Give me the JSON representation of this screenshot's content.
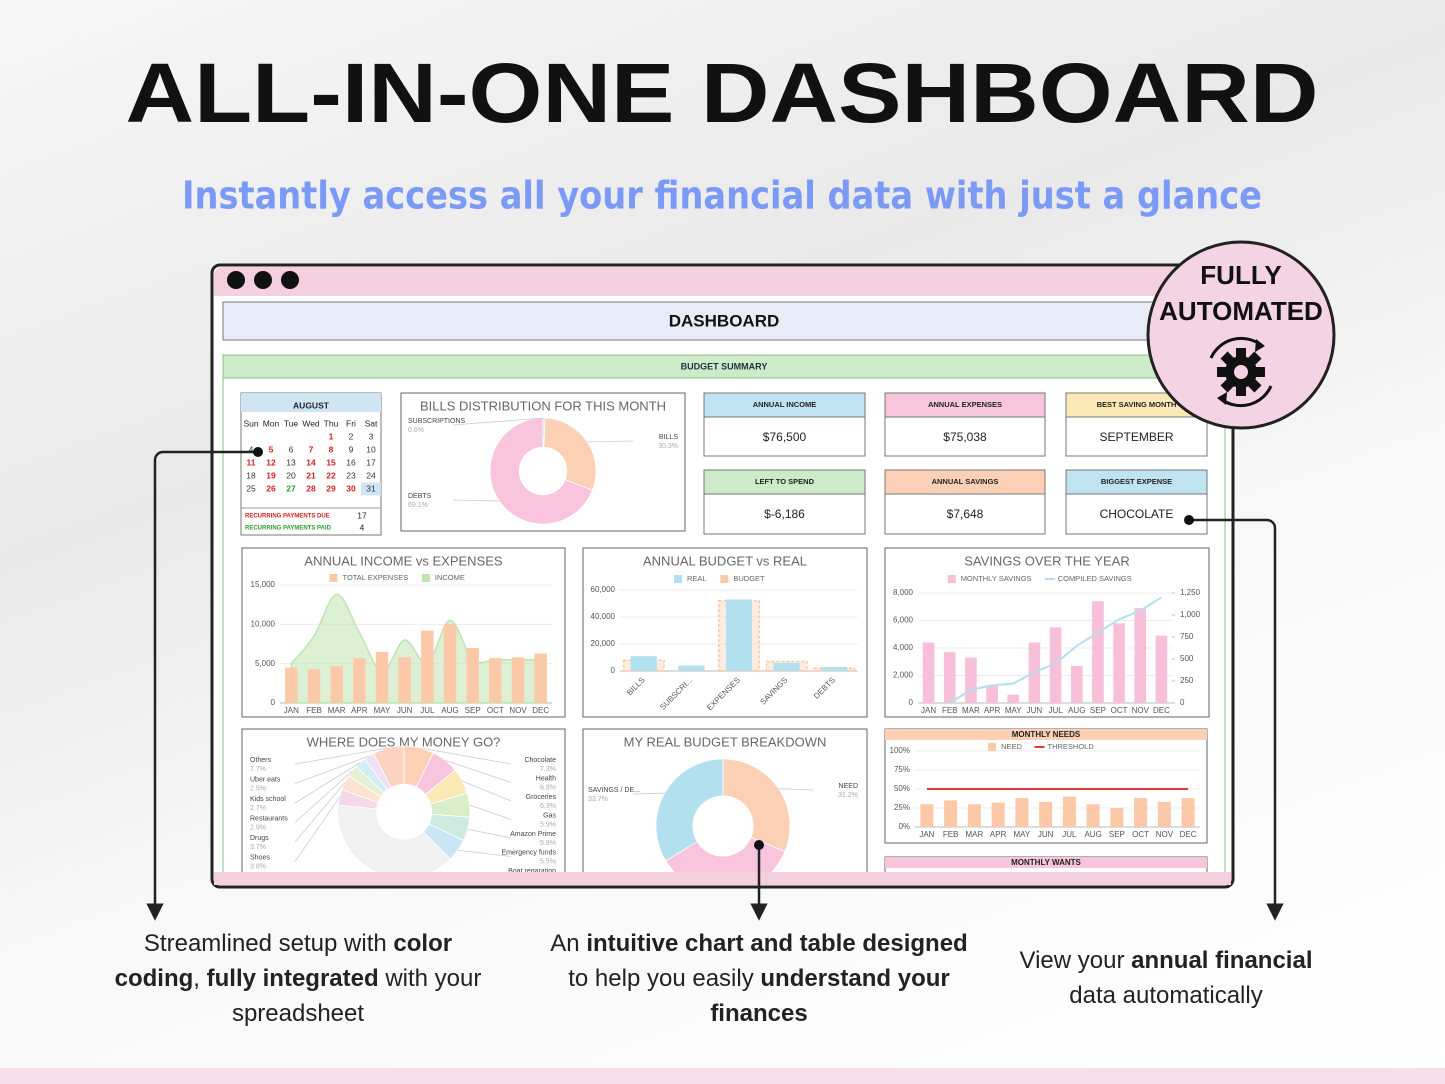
{
  "header": {
    "title": "ALL-IN-ONE DASHBOARD",
    "subtitle": "Instantly access all your financial data with just a glance"
  },
  "badge": {
    "line1": "FULLY",
    "line2": "AUTOMATED"
  },
  "dashboard": {
    "title": "DASHBOARD",
    "section": "BUDGET SUMMARY",
    "calendar": {
      "month": "AUGUST",
      "weekdays": [
        "Sun",
        "Mon",
        "Tue",
        "Wed",
        "Thu",
        "Fri",
        "Sat"
      ],
      "weeks": [
        [
          null,
          null,
          null,
          null,
          1,
          2,
          3
        ],
        [
          4,
          5,
          6,
          7,
          8,
          9,
          10
        ],
        [
          11,
          12,
          13,
          14,
          15,
          16,
          17
        ],
        [
          18,
          19,
          20,
          21,
          22,
          23,
          24
        ],
        [
          25,
          26,
          27,
          28,
          29,
          30,
          31
        ]
      ],
      "due_days": [
        1,
        5,
        7,
        8,
        11,
        12,
        14,
        15,
        19,
        21,
        22,
        26,
        28,
        29,
        30
      ],
      "paid_days": [
        27
      ],
      "today": 31,
      "due_label": "RECURRING PAYMENTS DUE",
      "due_count": 17,
      "paid_label": "RECURRING PAYMENTS PAID",
      "paid_count": 4
    },
    "kpis": [
      {
        "label": "ANNUAL INCOME",
        "value": "$76,500",
        "color": "#bfe3f1"
      },
      {
        "label": "ANNUAL EXPENSES",
        "value": "$75,038",
        "color": "#f7c6dc"
      },
      {
        "label": "BEST SAVING MONTH",
        "value": "SEPTEMBER",
        "color": "#fbe9b5"
      },
      {
        "label": "LEFT TO SPEND",
        "value": "$-6,186",
        "color": "#cdebc8"
      },
      {
        "label": "ANNUAL SAVINGS",
        "value": "$7,648",
        "color": "#fbd0b5"
      },
      {
        "label": "BIGGEST EXPENSE",
        "value": "CHOCOLATE",
        "color": "#bfe3f1"
      }
    ],
    "bills": {
      "type": "pie",
      "title": "BILLS DISTRIBUTION FOR THIS MONTH",
      "hole": 0.45,
      "categories": [
        "SUBSCRIPTIONS",
        "BILLS",
        "DEBTS"
      ],
      "values": [
        0.6,
        30.3,
        69.1
      ],
      "value_labels": [
        "0.6%",
        "30.3%",
        "69.1%"
      ],
      "colors": [
        "#b3e0ee",
        "#fbd0b5",
        "#f9c4de"
      ]
    },
    "income_expenses": {
      "type": "combo",
      "title": "ANNUAL INCOME vs EXPENSES",
      "categories": [
        "JAN",
        "FEB",
        "MAR",
        "APR",
        "MAY",
        "JUN",
        "JUL",
        "AUG",
        "SEP",
        "OCT",
        "NOV",
        "DEC"
      ],
      "ylim": [
        0,
        15000
      ],
      "yticks": [
        0,
        {
          "value": 5000,
          "label": "5,000"
        },
        {
          "value": 10000,
          "label": "10,000"
        },
        {
          "value": 15000,
          "label": "15,000"
        }
      ],
      "series": [
        {
          "name": "TOTAL EXPENSES",
          "kind": "bar",
          "color": "#fbc9a8",
          "values": [
            4500,
            4300,
            4700,
            5700,
            6500,
            5800,
            9200,
            10000,
            7000,
            5700,
            5800,
            6300
          ]
        },
        {
          "name": "INCOME",
          "kind": "area",
          "color": "#bfe3b0",
          "values": [
            5000,
            8500,
            13800,
            9000,
            4000,
            8000,
            5000,
            10500,
            5500,
            5500,
            5500,
            5500
          ]
        }
      ]
    },
    "budget_real": {
      "type": "combo",
      "title": "ANNUAL BUDGET vs REAL",
      "rotate_labels": true,
      "categories": [
        "BILLS",
        "SUBSCRI...",
        "EXPENSES",
        "SAVINGS",
        "DEBTS"
      ],
      "ylim": [
        0,
        60000
      ],
      "yticks": [
        0,
        {
          "value": 20000,
          "label": "20,000"
        },
        {
          "value": 40000,
          "label": "40,000"
        },
        {
          "value": 60000,
          "label": "60,000"
        }
      ],
      "series": [
        {
          "name": "REAL",
          "kind": "bar",
          "color": "#b3e0ee",
          "values": [
            11000,
            4000,
            53000,
            6000,
            3000
          ]
        },
        {
          "name": "BUDGET",
          "kind": "bar",
          "style": "outline",
          "color": "#fbc9a8",
          "values": [
            8000,
            0,
            52000,
            7000,
            2000
          ]
        }
      ]
    },
    "savings": {
      "type": "combo",
      "title": "SAVINGS OVER THE YEAR",
      "categories": [
        "JAN",
        "FEB",
        "MAR",
        "APR",
        "MAY",
        "JUN",
        "JUL",
        "AUG",
        "SEP",
        "OCT",
        "NOV",
        "DEC"
      ],
      "ylim": [
        0,
        8000
      ],
      "yticks": [
        0,
        {
          "value": 2000,
          "label": "2,000"
        },
        {
          "value": 4000,
          "label": "4,000"
        },
        {
          "value": 6000,
          "label": "6,000"
        },
        {
          "value": 8000,
          "label": "8,000"
        }
      ],
      "y2lim": [
        0,
        1250
      ],
      "y2ticks": [
        0,
        250,
        500,
        750,
        {
          "value": 1000,
          "label": "1,000"
        },
        {
          "value": 1250,
          "label": "1,250"
        }
      ],
      "series": [
        {
          "name": "MONTHLY SAVINGS",
          "kind": "bar",
          "color": "#f7bfd9",
          "values": [
            4400,
            3700,
            3300,
            1300,
            600,
            4400,
            5500,
            2700,
            7400,
            5800,
            6900,
            4900
          ]
        },
        {
          "name": "COMPILED SAVINGS",
          "kind": "line",
          "axis": "y2",
          "color": "#b3e0ee",
          "values": [
            null,
            0,
            150,
            200,
            220,
            350,
            450,
            650,
            800,
            950,
            1050,
            1200
          ]
        }
      ]
    },
    "money": {
      "type": "pie",
      "title": "WHERE DOES MY MONEY GO?",
      "hole": 0.42,
      "categories": [
        "Chocolate",
        "Health",
        "Groceries",
        "Gas",
        "Amazon Prime",
        "Emergency funds",
        "Boat reparation",
        "Shoes",
        "Drugs",
        "Restaurants",
        "Kids school",
        "Uber eats",
        "Others"
      ],
      "values": [
        7.3,
        6.8,
        6.3,
        5.9,
        5.8,
        5.5,
        null,
        3.8,
        3.7,
        2.9,
        2.7,
        2.5,
        7.7
      ],
      "value_labels": [
        "7.3%",
        "6.8%",
        "6.3%",
        "5.9%",
        "5.8%",
        "5.5%",
        null,
        "3.8%",
        "3.7%",
        "2.9%",
        "2.7%",
        "2.5%",
        "7.7%"
      ],
      "colors": [
        "#fbd0b5",
        "#f9c4de",
        "#fbe9b5",
        "#d8eec9",
        "#cdebe0",
        "#c9e6f5",
        "#dcd3f3",
        "#f4d8ea",
        "#fde3cf",
        "#e3f2d6",
        "#d3ecf6",
        "#efe0f7",
        "#fcd3c0"
      ]
    },
    "breakdown": {
      "type": "pie",
      "title": "MY REAL BUDGET BREAKDOWN",
      "hole": 0.45,
      "categories": [
        "NEED",
        null,
        "SAVINGS / DE..."
      ],
      "values": [
        31.2,
        35.1,
        33.7
      ],
      "value_labels": [
        "31.2%",
        null,
        "33.7%"
      ],
      "colors": [
        "#fbd0b5",
        "#f9c4de",
        "#b3e0ee"
      ]
    },
    "needs": {
      "type": "combo",
      "title": "MONTHLY NEEDS",
      "header_color": "#fbd0b5",
      "categories": [
        "JAN",
        "FEB",
        "MAR",
        "APR",
        "MAY",
        "JUN",
        "JUL",
        "AUG",
        "SEP",
        "OCT",
        "NOV",
        "DEC"
      ],
      "ylim": [
        0,
        100
      ],
      "yticks": [
        {
          "value": 0,
          "label": "0%"
        },
        {
          "value": 25,
          "label": "25%"
        },
        {
          "value": 50,
          "label": "50%"
        },
        {
          "value": 75,
          "label": "75%"
        },
        {
          "value": 100,
          "label": "100%"
        }
      ],
      "series": [
        {
          "name": "NEED",
          "kind": "bar",
          "color": "#fbc9a8",
          "values": [
            30,
            35,
            30,
            32,
            38,
            33,
            40,
            30,
            25,
            38,
            33,
            38
          ]
        },
        {
          "name": "THRESHOLD",
          "kind": "line",
          "color": "#e53935",
          "values": [
            50,
            50,
            50,
            50,
            50,
            50,
            50,
            50,
            50,
            50,
            50,
            50
          ]
        }
      ]
    },
    "wants": {
      "title": "MONTHLY WANTS",
      "header_color": "#f7c6dc"
    }
  },
  "captions": [
    [
      [
        {
          "text": "Streamlined setup with "
        },
        {
          "text": "color",
          "bold": true
        }
      ],
      [
        {
          "text": "coding",
          "bold": true
        },
        {
          "text": ", "
        },
        {
          "text": "fully integrated",
          "bold": true
        },
        {
          "text": " with your"
        }
      ],
      [
        {
          "text": "spreadsheet"
        }
      ]
    ],
    [
      [
        {
          "text": "An "
        },
        {
          "text": "intuitive chart and table designed",
          "bold": true
        }
      ],
      [
        {
          "text": "to help you easily "
        },
        {
          "text": "understand your",
          "bold": true
        }
      ],
      [
        {
          "text": "finances",
          "bold": true
        }
      ]
    ],
    [
      [
        {
          "text": "View your "
        },
        {
          "text": "annual financial",
          "bold": true
        }
      ],
      [
        {
          "text": "data automatically"
        }
      ]
    ]
  ]
}
